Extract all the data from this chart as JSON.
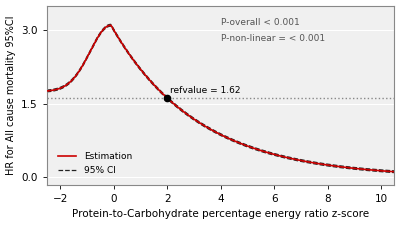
{
  "xlabel": "Protein-to-Carbohydrate percentage energy ratio z-score",
  "ylabel": "HR for All cause mortality 95%CI",
  "xlim": [
    -2.5,
    10.5
  ],
  "ylim": [
    -0.15,
    3.5
  ],
  "xticks": [
    -2,
    0,
    2,
    4,
    6,
    8,
    10
  ],
  "yticks": [
    0.0,
    1.5,
    3.0
  ],
  "ref_x": 2.0,
  "ref_y": 1.62,
  "ref_label": "refvalue = 1.62",
  "p_overall_text": "P-overall < 0.001",
  "p_nonlinear_text": "P-non-linear = < 0.001",
  "legend_estimation": "Estimation",
  "legend_ci": "95% CI",
  "line_color": "#CC0000",
  "ci_color": "#222222",
  "ref_line_color": "#888888",
  "background_color": "#ffffff",
  "plot_bg_color": "#f0f0f0",
  "peak_x": -0.1,
  "peak_y": 3.1,
  "start_x": -2.0,
  "start_y": 1.75,
  "end_x": 10.0,
  "end_y": 0.08
}
